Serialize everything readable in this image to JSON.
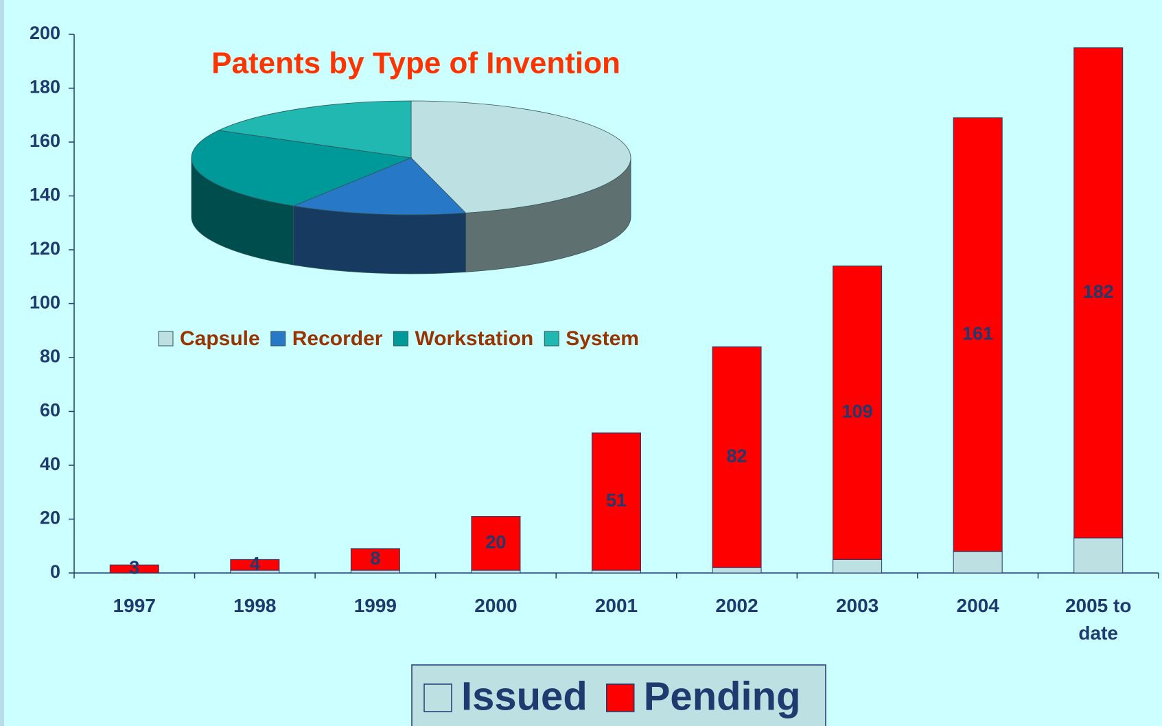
{
  "chart_data": [
    {
      "type": "stacked_bar",
      "categories": [
        "1997",
        "1998",
        "1999",
        "2000",
        "2001",
        "2002",
        "2003",
        "2004",
        "2005 to date"
      ],
      "series": [
        {
          "name": "Issued",
          "color": "#bde0e2",
          "values": [
            0,
            1,
            1,
            1,
            1,
            2,
            5,
            8,
            13
          ]
        },
        {
          "name": "Pending",
          "color": "#ff0000",
          "values": [
            3,
            4,
            8,
            20,
            51,
            82,
            109,
            161,
            182
          ],
          "show_labels": true
        }
      ],
      "ylim": [
        0,
        200
      ],
      "yticks": [
        0,
        20,
        40,
        60,
        80,
        100,
        120,
        140,
        160,
        180,
        200
      ],
      "legend": "bottom"
    },
    {
      "type": "pie3d",
      "title": "Patents by Type of Invention",
      "categories": [
        "Capsule",
        "Recorder",
        "Workstation",
        "System"
      ],
      "values": [
        46,
        13,
        24,
        17
      ],
      "colors": [
        "#bde0e2",
        "#2878c8",
        "#009999",
        "#20b8b0"
      ],
      "side_colors": [
        "#5f7070",
        "#163a60",
        "#004d4d",
        "#107070"
      ]
    }
  ]
}
